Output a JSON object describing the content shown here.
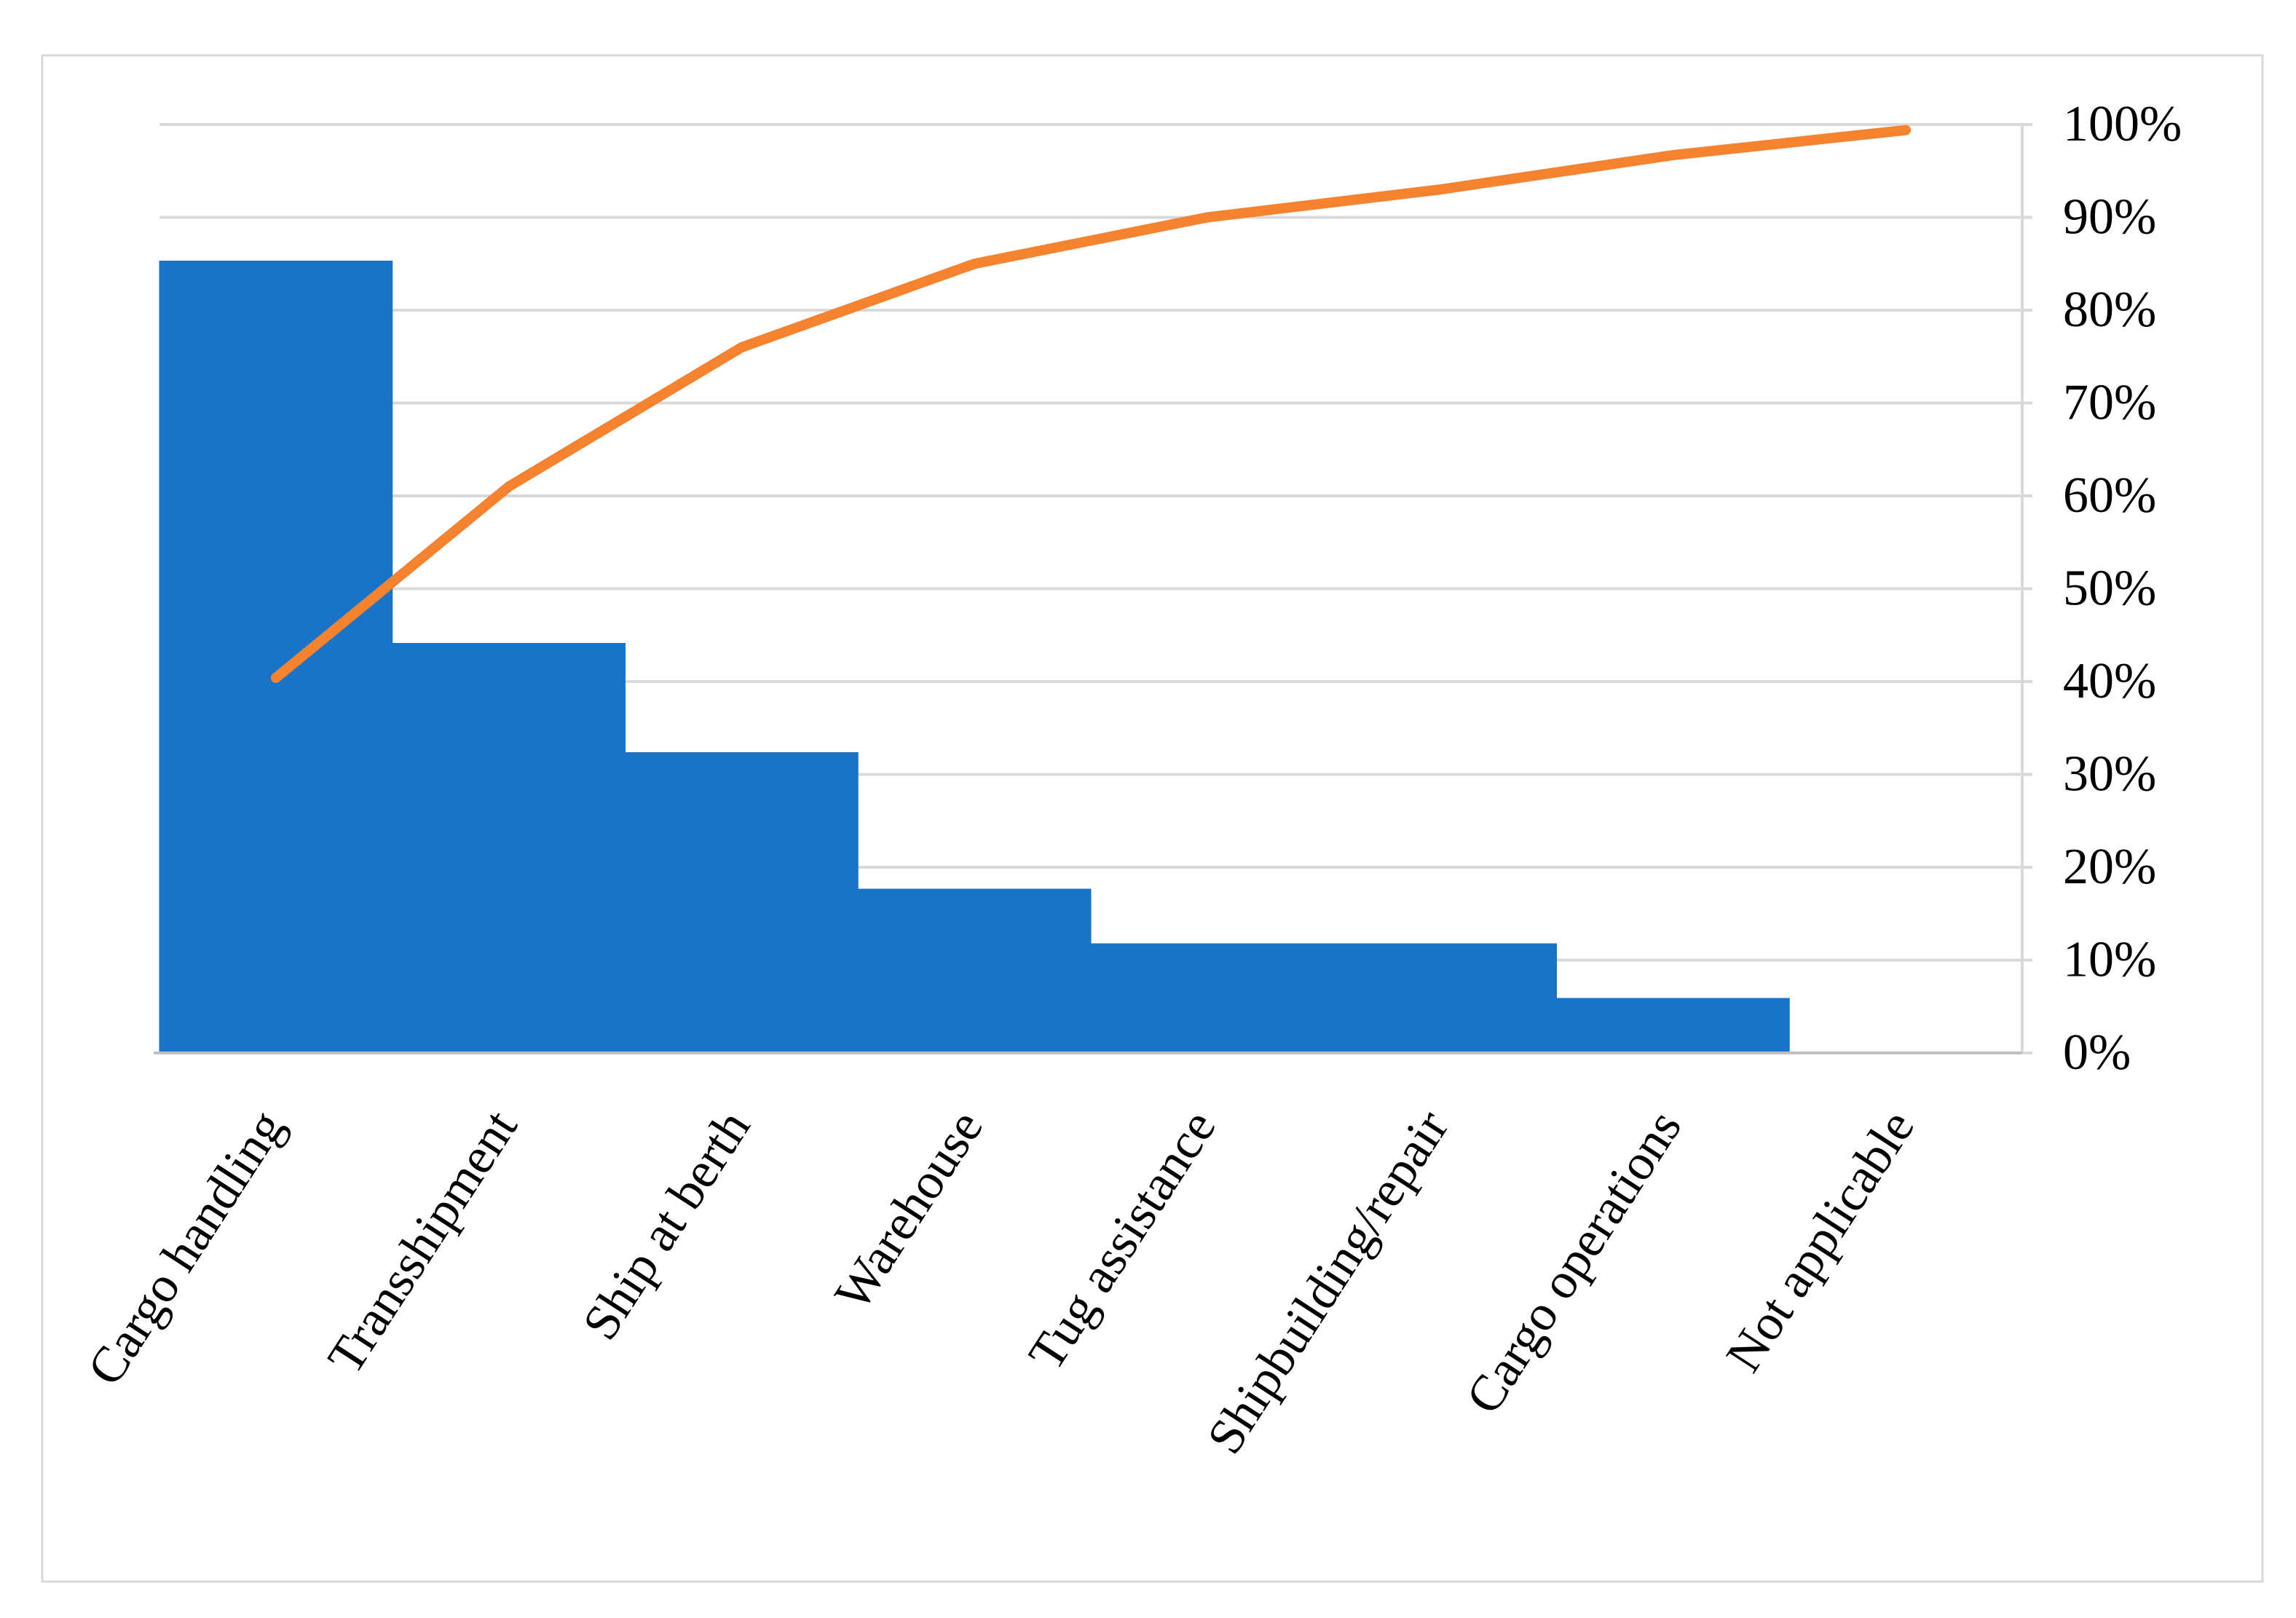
{
  "chart_data": {
    "type": "pareto",
    "categories": [
      "Cargo handling",
      "Transshipment",
      "Ship at berth",
      "Warehouse",
      "Tug assistance",
      "Shipbuilding/repair",
      "Cargo operations",
      "Not applicable"
    ],
    "series": [
      {
        "type": "bar",
        "color": "#1874c9",
        "values": [
          29,
          15,
          11,
          6,
          4,
          4,
          2,
          0
        ]
      },
      {
        "type": "line",
        "axis": "y2",
        "color": "#f5822f",
        "values": [
          40.4,
          61,
          76,
          85,
          90,
          93,
          96.7,
          99.4
        ]
      }
    ],
    "ylim": [
      0,
      34
    ],
    "y2lim": [
      0,
      100
    ],
    "y2ticks": [
      {
        "value": 0,
        "label": "0%"
      },
      {
        "value": 10,
        "label": "10%"
      },
      {
        "value": 20,
        "label": "20%"
      },
      {
        "value": 30,
        "label": "30%"
      },
      {
        "value": 40,
        "label": "40%"
      },
      {
        "value": 50,
        "label": "50%"
      },
      {
        "value": 60,
        "label": "60%"
      },
      {
        "value": 70,
        "label": "70%"
      },
      {
        "value": 80,
        "label": "80%"
      },
      {
        "value": 90,
        "label": "90%"
      },
      {
        "value": 100,
        "label": "100%"
      }
    ],
    "grid": true
  }
}
